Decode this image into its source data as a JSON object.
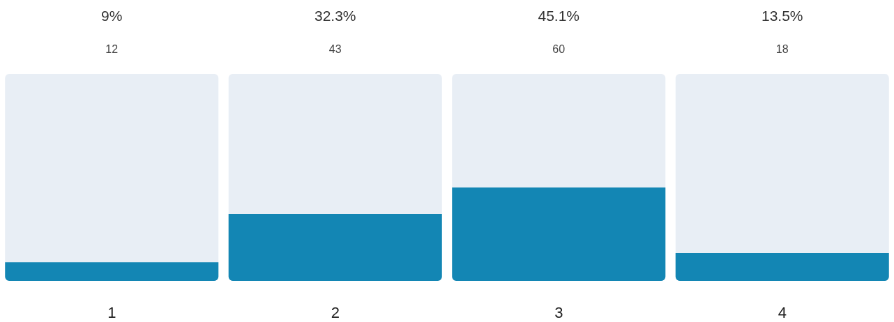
{
  "chart_data": {
    "type": "bar",
    "categories": [
      "1",
      "2",
      "3",
      "4"
    ],
    "values": [
      9,
      32.3,
      45.1,
      13.5
    ],
    "color": "#1386b4",
    "value_labels": [
      "9%",
      "32.3%",
      "45.1%",
      "13.5%"
    ],
    "annotations": [
      "12",
      "43",
      "60",
      "18"
    ],
    "ylim": [
      0,
      100
    ],
    "tick_labels": "x"
  }
}
